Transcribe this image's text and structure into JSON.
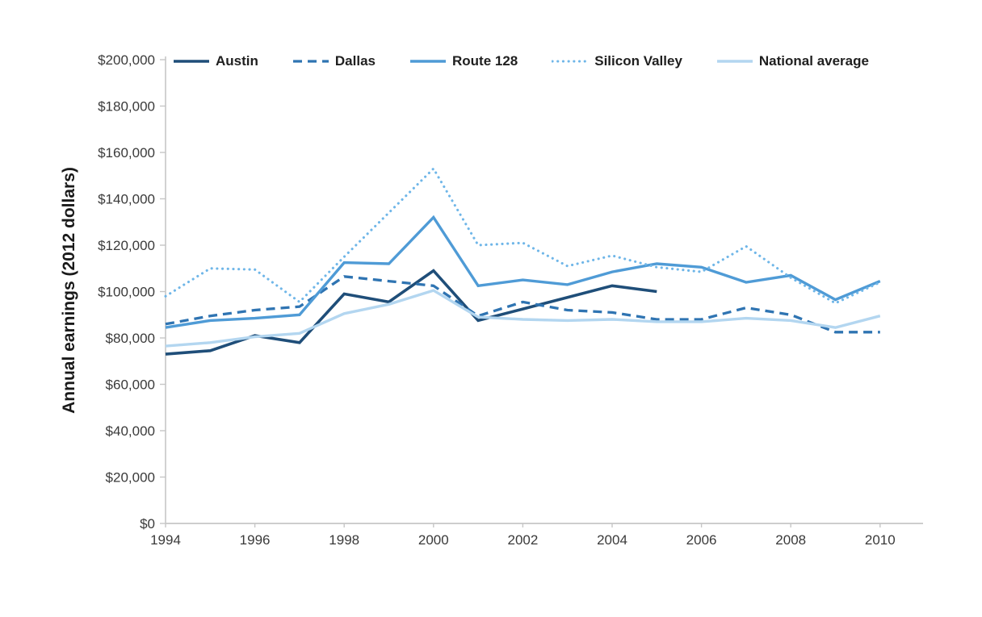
{
  "figure": {
    "background_color": "#ffffff",
    "axis_color": "#c6c6c6",
    "tick_label_color": "#3a3a3a"
  },
  "chart_data": {
    "type": "line",
    "title": "",
    "xlabel": "",
    "ylabel": "Annual earnings (2012 dollars)",
    "grid": false,
    "legend_position": "top",
    "xlim": [
      1994,
      2010
    ],
    "ylim": [
      0,
      200000
    ],
    "x": [
      1994,
      1995,
      1996,
      1997,
      1998,
      1999,
      2000,
      2001,
      2002,
      2003,
      2004,
      2005,
      2006,
      2007,
      2008,
      2009,
      2010
    ],
    "x_tick_positions": [
      1994,
      1996,
      1998,
      2000,
      2002,
      2004,
      2006,
      2008,
      2010
    ],
    "x_tick_labels": [
      "1994",
      "1996",
      "1998",
      "2000",
      "2002",
      "2004",
      "2006",
      "2008",
      "2010"
    ],
    "y_tick_positions": [
      0,
      20000,
      40000,
      60000,
      80000,
      100000,
      120000,
      140000,
      160000,
      180000,
      200000
    ],
    "y_tick_labels": [
      "$0",
      "$20,000",
      "$40,000",
      "$60,000",
      "$80,000",
      "$100,000",
      "$120,000",
      "$140,000",
      "$160,000",
      "$180,000",
      "$200,000"
    ],
    "series": [
      {
        "name": "Austin",
        "color": "#1f4e79",
        "style": "solid",
        "stroke_width": 3.6,
        "values": [
          73000,
          74500,
          81000,
          78000,
          99000,
          95500,
          109000,
          87500,
          92500,
          97500,
          102500,
          100000,
          null,
          null,
          null,
          null,
          null
        ]
      },
      {
        "name": "Dallas",
        "color": "#2f74b2",
        "style": "dashed",
        "stroke_width": 3.3,
        "values": [
          86000,
          89500,
          92000,
          93500,
          106500,
          104500,
          102500,
          89500,
          95500,
          92000,
          91000,
          88000,
          88000,
          93000,
          90000,
          82500,
          82500
        ]
      },
      {
        "name": "Route 128",
        "color": "#4f9bd6",
        "style": "solid",
        "stroke_width": 3.4,
        "values": [
          84500,
          87500,
          88500,
          90000,
          112500,
          112000,
          132000,
          102500,
          105000,
          103000,
          108500,
          112000,
          110500,
          104000,
          107000,
          96500,
          104500
        ]
      },
      {
        "name": "Silicon Valley",
        "color": "#6fb6e8",
        "style": "dotted",
        "stroke_width": 3.1,
        "values": [
          98000,
          110000,
          109500,
          95500,
          115000,
          134000,
          153000,
          120000,
          121000,
          111000,
          115500,
          110500,
          108500,
          119500,
          106000,
          95000,
          104000
        ]
      },
      {
        "name": "National average",
        "color": "#b3d6f0",
        "style": "solid",
        "stroke_width": 3.4,
        "values": [
          76500,
          78000,
          80500,
          82000,
          90500,
          94500,
          100500,
          89000,
          88000,
          87500,
          88000,
          87000,
          87000,
          88500,
          87500,
          84500,
          89500
        ]
      }
    ]
  }
}
